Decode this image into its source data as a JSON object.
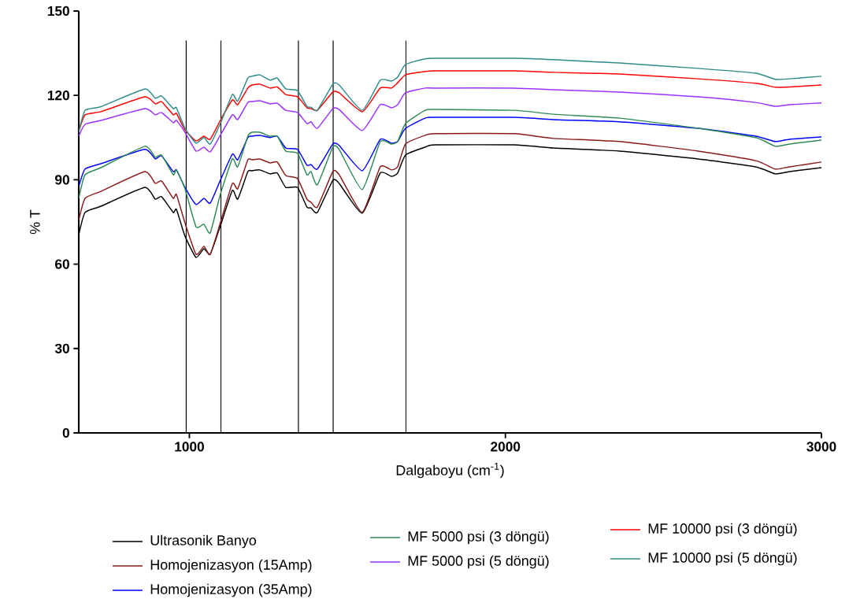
{
  "chart_data": {
    "type": "line",
    "xlabel": "Dalgaboyu (cm$^{-1}$)",
    "ylabel": "% T",
    "x": [
      650,
      670,
      720,
      859,
      892,
      912,
      949,
      959,
      986,
      1021,
      1046,
      1066,
      1098,
      1136,
      1153,
      1185,
      1198,
      1223,
      1255,
      1278,
      1305,
      1342,
      1372,
      1385,
      1405,
      1454,
      1474,
      1547,
      1604,
      1639,
      1659,
      1684,
      1746,
      1778,
      2027,
      2152,
      2361,
      2610,
      2792,
      2854,
      2899,
      3000
    ],
    "series": [
      {
        "name": "Ultrasonik Banyo",
        "color": "#000000",
        "values": [
          70.5,
          78.4,
          80.6,
          87.3,
          83.1,
          84,
          78.4,
          79.5,
          70,
          62.4,
          65.5,
          63.5,
          73.6,
          86.2,
          83.1,
          92.9,
          93.2,
          93.5,
          92.1,
          92.4,
          87.3,
          87.3,
          80.3,
          80,
          78.4,
          89.8,
          88.7,
          78.1,
          92.4,
          91.2,
          92.4,
          98.8,
          101.6,
          102.4,
          102.4,
          101.3,
          100.2,
          97.4,
          94.6,
          92.1,
          92.9,
          94.3
        ]
      },
      {
        "name": "Homojenizasyon (15Amp)",
        "color": "#8b1a1a",
        "values": [
          75.6,
          83.4,
          85.9,
          92.9,
          88.7,
          89.6,
          83.4,
          84.8,
          74.7,
          63.5,
          66.3,
          63.5,
          74.7,
          88.7,
          86.8,
          97.1,
          97.1,
          97.4,
          96,
          96.3,
          91.5,
          90.4,
          83.1,
          82,
          80.3,
          92.9,
          91.8,
          78.4,
          94.6,
          93.5,
          94.6,
          102.7,
          105.8,
          106.4,
          106.4,
          104.7,
          103.6,
          100.2,
          96.8,
          93.8,
          94.6,
          96.3
        ]
      },
      {
        "name": "Homojenizasyon (35Amp)",
        "color": "#0000ff",
        "values": [
          87.6,
          93.8,
          95.7,
          100.8,
          97.4,
          98.5,
          92.9,
          93.5,
          87.3,
          81.2,
          83.4,
          81.7,
          89.8,
          99.1,
          97.1,
          105,
          105.5,
          105.8,
          105,
          105.5,
          101.3,
          100.8,
          95.2,
          95.4,
          93.8,
          102.7,
          102.2,
          93.2,
          104.4,
          103,
          103.6,
          108.3,
          111.9,
          112.2,
          112.2,
          111.4,
          110.6,
          108.3,
          105.5,
          103.6,
          104.4,
          105.2
        ]
      },
      {
        "name": "MF 5000 psi (3 döngü)",
        "color": "#2e8b57",
        "values": [
          83.4,
          91.8,
          94.3,
          101.9,
          98,
          98.8,
          91.8,
          93.5,
          86.8,
          73.3,
          74.2,
          71.1,
          84.8,
          97.4,
          94.6,
          105.5,
          106.9,
          106.9,
          105.5,
          105.5,
          100.2,
          99.4,
          91.8,
          92.9,
          88.2,
          101.6,
          100.8,
          86.5,
          103.6,
          102.7,
          103.6,
          110,
          114.7,
          115,
          114.7,
          113.3,
          111.9,
          108.3,
          105,
          101.9,
          102.7,
          104.1
        ]
      },
      {
        "name": "MF 5000 psi (5 döngü)",
        "color": "#9b30ff",
        "values": [
          105.5,
          109.7,
          111.1,
          115.3,
          113.1,
          113.9,
          110.3,
          111.1,
          106.9,
          100.2,
          101.6,
          99.9,
          105.8,
          113.1,
          111.4,
          117.5,
          117.8,
          118.1,
          117,
          117.2,
          114.7,
          113.9,
          110,
          110.6,
          108.3,
          115.3,
          115,
          107.5,
          116.7,
          115.6,
          116.7,
          120.9,
          122.6,
          122.6,
          122.6,
          122,
          121.2,
          119.5,
          117.5,
          116.1,
          116.7,
          117.3
        ]
      },
      {
        "name": "MF 10000 psi (3 döngü)",
        "color": "#ff0000",
        "values": [
          107.2,
          113.1,
          114.2,
          119.5,
          117,
          117.8,
          113.1,
          113.6,
          107.8,
          103.8,
          105.5,
          104.4,
          111.1,
          118.4,
          116.7,
          122.6,
          123.7,
          124,
          122.6,
          123,
          120.3,
          119.5,
          115.6,
          115.3,
          114.7,
          121.2,
          120.9,
          114.2,
          122.6,
          122.6,
          124.5,
          127.3,
          128.5,
          128.7,
          128.7,
          128.2,
          127.6,
          125.9,
          124.3,
          122.9,
          123,
          123.7
        ]
      },
      {
        "name": "MF 10000 psi (5 döngü)",
        "color": "#2e8b8b",
        "values": [
          106.9,
          114.7,
          116,
          122.3,
          119,
          119.8,
          115.3,
          115.6,
          108.3,
          103,
          105,
          102.7,
          110,
          120.3,
          118,
          126.2,
          126.8,
          127.3,
          125.4,
          126.2,
          122.3,
          121.7,
          116.1,
          115.8,
          114.7,
          124,
          123.7,
          114.7,
          125.4,
          125.1,
          126.5,
          131,
          133,
          133.2,
          133.2,
          132.7,
          131.5,
          129.6,
          127.9,
          125.7,
          125.9,
          126.8
        ]
      }
    ],
    "xlim": [
      650,
      3000
    ],
    "xticks": [
      1000,
      2000,
      3000
    ],
    "ylim": [
      0,
      150
    ],
    "yticks": [
      0,
      30,
      60,
      90,
      120,
      150
    ],
    "ref_lines": [
      {
        "axis": "x",
        "value": 990,
        "color": "#000000"
      },
      {
        "axis": "x",
        "value": 1100,
        "color": "#000000"
      },
      {
        "axis": "x",
        "value": 1345,
        "color": "#000000"
      },
      {
        "axis": "x",
        "value": 1455,
        "color": "#000000"
      },
      {
        "axis": "x",
        "value": 1685,
        "color": "#000000"
      }
    ],
    "legend": "bottom"
  }
}
